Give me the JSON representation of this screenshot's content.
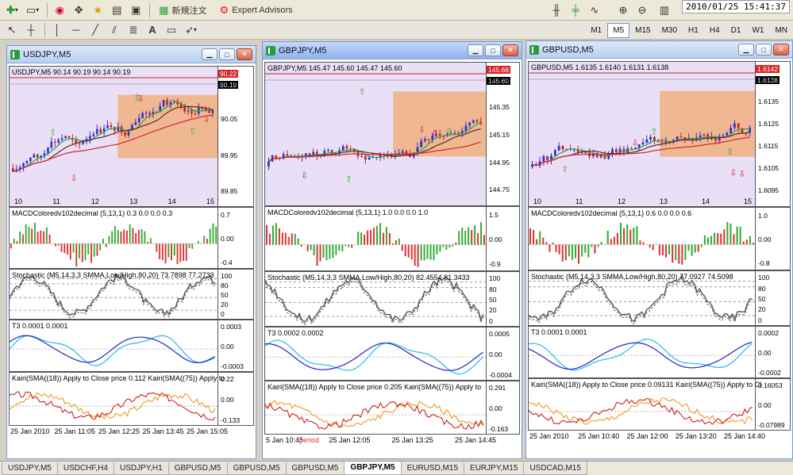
{
  "clock": "2010/01/25 15:41:37",
  "toolbar": {
    "new_order": "新規注文",
    "expert_advisors": "Expert Advisors"
  },
  "timeframes": [
    "M1",
    "M5",
    "M15",
    "M30",
    "H1",
    "H4",
    "D1",
    "W1",
    "MN"
  ],
  "active_timeframe": "M5",
  "colors": {
    "bull_candle": "#3333cc",
    "bear_candle": "#cc2222",
    "pane_bg": "#e9e0f7",
    "box_orange": "#f0b080",
    "hist_up": "#33aa33",
    "hist_down": "#dd3333",
    "stoch_main": "#555555",
    "t3_blue": "#2222bb",
    "t3_cyan": "#22bbee",
    "kairi_red": "#cc2222",
    "kairi_orange": "#ee9922"
  },
  "windows": [
    {
      "title": "USDJPY,M5",
      "price_label": "USDJPY,M5  90.14 90.19 90.14 90.19",
      "price_ticks": [
        "90.15",
        "90.05",
        "89.95",
        "89.85"
      ],
      "bid_tag": "90.19",
      "ask_tag": "90.22",
      "x_ticks": [
        "10",
        "11",
        "12",
        "13",
        "14",
        "15"
      ],
      "macd_label": "MACDColoredv102decimal (5,13,1) 0.3 0.0 0.0 0.3",
      "macd_ticks": [
        "0.7",
        "0.00",
        "-0.4"
      ],
      "stoch_label": "Stochastic (M5,14,3,3 SMMA,Low/High,80,20) 73.7898 77.2733",
      "stoch_ticks": [
        "100",
        "80",
        "50",
        "20",
        "0"
      ],
      "t3_label": "T3 0.0001 0.0001",
      "t3_ticks": [
        "0.0003",
        "0.00",
        "-0.0003"
      ],
      "kairi_label": "Kairi(SMA((18)) Apply to Close price 0.112  Kairi(SMA((75)) Apply to",
      "kairi_ticks": [
        "0.22",
        "0.00",
        "-0.133"
      ],
      "time_ticks": [
        "25 Jan 2010",
        "25 Jan 11:05",
        "25 Jan 12:25",
        "25 Jan 13:45",
        "25 Jan 15:05"
      ]
    },
    {
      "title": "GBPJPY,M5",
      "price_label": "GBPJPY,M5  145.47 145.60 145.47 145.60",
      "price_ticks": [
        "145.55",
        "145.35",
        "145.15",
        "144.95",
        "144.75"
      ],
      "bid_tag": "145.60",
      "ask_tag": "145.68",
      "x_ticks": [],
      "macd_label": "MACDColoredv102decimal (5,13,1) 1.0 0.0 0.0 1.0",
      "macd_ticks": [
        "1.5",
        "0.00",
        "-0.9"
      ],
      "stoch_label": "Stochastic (M5,14,3,3 SMMA,Low/High,80,20) 82.4554 81.3433",
      "stoch_ticks": [
        "100",
        "80",
        "50",
        "20",
        "0"
      ],
      "t3_label": "T3 0.0002 0.0002",
      "t3_ticks": [
        "0.0005",
        "0.00",
        "-0.0004"
      ],
      "kairi_label": "Kairi(SMA((18)) Apply to Close price 0.205  Kairi(SMA((75)) Apply to",
      "kairi_ticks": [
        "0.291",
        "0.00",
        "-0.163"
      ],
      "time_ticks": [
        "5 Jan 10:45",
        "25 Jan 12:05",
        "25 Jan 13:25",
        "25 Jan 14:45"
      ],
      "period_tag": "period"
    },
    {
      "title": "GBPUSD,M5",
      "price_label": "GBPUSD,M5  1.6135 1.6140 1.6131 1.6138",
      "price_ticks": [
        "1.6145",
        "1.6135",
        "1.6125",
        "1.6115",
        "1.6105",
        "1.6095"
      ],
      "bid_tag": "1.6138",
      "ask_tag": "1.6142",
      "x_ticks": [
        "10",
        "11",
        "12",
        "13",
        "14",
        "15"
      ],
      "macd_label": "MACDColoredv102decimal (5,13,1) 0.6 0.0 0.0 0.6",
      "macd_ticks": [
        "1.0",
        "0.00",
        "-0.8"
      ],
      "stoch_label": "Stochastic (M5,14,3,3 SMMA,Low/High,80,20) 77.0927 74.5098",
      "stoch_ticks": [
        "100",
        "80",
        "50",
        "20",
        "0"
      ],
      "t3_label": "T3 0.0001 0.0001",
      "t3_ticks": [
        "0.0002",
        "0.00",
        "-0.0002"
      ],
      "kairi_label": "Kairi(SMA((18)) Apply to Close price 0.09131  Kairi(SMA((75)) Apply to Cl",
      "kairi_ticks": [
        "0.16053",
        "0.00",
        "-0.07989"
      ],
      "time_ticks": [
        "25 Jan 2010",
        "25 Jan 10:40",
        "25 Jan 12:00",
        "25 Jan 13:20",
        "25 Jan 14:40"
      ]
    }
  ],
  "tabs": [
    "USDJPY,M5",
    "USDCHF,H4",
    "USDJPY,H1",
    "GBPUSD,M5",
    "GBPUSD,M5",
    "GBPUSD,M5",
    "GBPJPY,M5",
    "EURUSD,M15",
    "EURJPY,M15",
    "USDCAD,M15"
  ],
  "active_tab_index": 6
}
